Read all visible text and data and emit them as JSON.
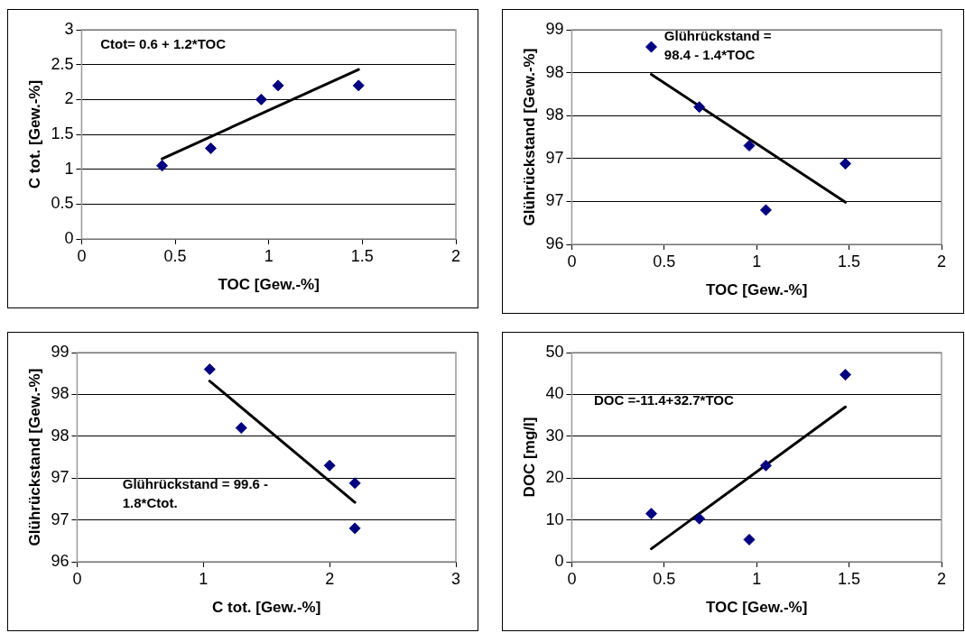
{
  "chart_data": [
    {
      "type": "scatter",
      "xlabel": "TOC [Gew.-%]",
      "ylabel": "C tot. [Gew.-%]",
      "xlim": [
        0,
        2
      ],
      "xticks": [
        0,
        0.5,
        1,
        1.5,
        2
      ],
      "ylim": [
        0,
        3
      ],
      "yticks": [
        0,
        0.5,
        1,
        1.5,
        2,
        2.5,
        3
      ],
      "grid": "y",
      "annotations": [
        "Ctot= 0.6 + 1.2*TOC"
      ],
      "series": [
        {
          "color": "#000080",
          "marker": "diamond",
          "x": [
            0.43,
            0.69,
            0.96,
            1.05,
            1.48
          ],
          "values": [
            1.05,
            1.3,
            2.0,
            2.2,
            2.2
          ]
        },
        {
          "type": "line",
          "color": "#000000",
          "marker": "none",
          "x": [
            0.43,
            1.48
          ],
          "values": [
            1.15,
            2.43
          ]
        }
      ]
    },
    {
      "type": "scatter",
      "xlabel": "TOC [Gew.-%]",
      "ylabel": "Glührückstand [Gew.-%]",
      "xlim": [
        0,
        2
      ],
      "xticks": [
        0,
        0.5,
        1,
        1.5,
        2
      ],
      "ylim": [
        96,
        98.5
      ],
      "yticks": [
        96,
        {
          "value": 96.5,
          "label": "97"
        },
        97,
        {
          "value": 97.5,
          "label": "98"
        },
        98,
        {
          "value": 98.5,
          "label": "99"
        }
      ],
      "grid": "y",
      "annotations": [
        "Glührückstand = 98.4 - 1.4*TOC"
      ],
      "series": [
        {
          "color": "#000080",
          "marker": "diamond",
          "x": [
            0.43,
            0.69,
            0.96,
            1.05,
            1.48
          ],
          "values": [
            98.3,
            97.6,
            97.15,
            96.4,
            96.94
          ]
        },
        {
          "type": "line",
          "color": "#000000",
          "marker": "none",
          "x": [
            0.43,
            1.48
          ],
          "values": [
            97.98,
            96.49
          ]
        }
      ]
    },
    {
      "type": "scatter",
      "xlabel": "C tot. [Gew.-%]",
      "ylabel": "Glührückstand [Gew.-%]",
      "xlim": [
        0,
        3
      ],
      "xticks": [
        0,
        1,
        2,
        3
      ],
      "ylim": [
        96,
        98.5
      ],
      "yticks": [
        96,
        {
          "value": 96.5,
          "label": "97"
        },
        97,
        {
          "value": 97.5,
          "label": "98"
        },
        98,
        {
          "value": 98.5,
          "label": "99"
        }
      ],
      "grid": "y",
      "annotations": [
        "Glührückstand = 99.6 - 1.8*Ctot."
      ],
      "series": [
        {
          "color": "#000080",
          "marker": "diamond",
          "x": [
            1.05,
            1.3,
            2.0,
            2.2,
            2.2
          ],
          "values": [
            98.3,
            97.6,
            97.15,
            96.94,
            96.4
          ]
        },
        {
          "type": "line",
          "color": "#000000",
          "marker": "none",
          "x": [
            1.05,
            2.2
          ],
          "values": [
            98.16,
            96.71
          ]
        }
      ]
    },
    {
      "type": "scatter",
      "xlabel": "TOC [Gew.-%]",
      "ylabel": "DOC [mg/l]",
      "xlim": [
        0,
        2
      ],
      "xticks": [
        0,
        0.5,
        1,
        1.5,
        2
      ],
      "ylim": [
        0,
        50
      ],
      "yticks": [
        0,
        10,
        20,
        30,
        40,
        50
      ],
      "grid": "y",
      "annotations": [
        "DOC =-11.4+32.7*TOC"
      ],
      "series": [
        {
          "color": "#000080",
          "marker": "diamond",
          "x": [
            0.43,
            0.69,
            0.96,
            1.05,
            1.48
          ],
          "values": [
            11.5,
            10.3,
            5.3,
            23,
            44.7
          ]
        },
        {
          "type": "line",
          "color": "#000000",
          "marker": "none",
          "x": [
            0.43,
            1.48
          ],
          "values": [
            3.1,
            37
          ]
        }
      ]
    }
  ]
}
